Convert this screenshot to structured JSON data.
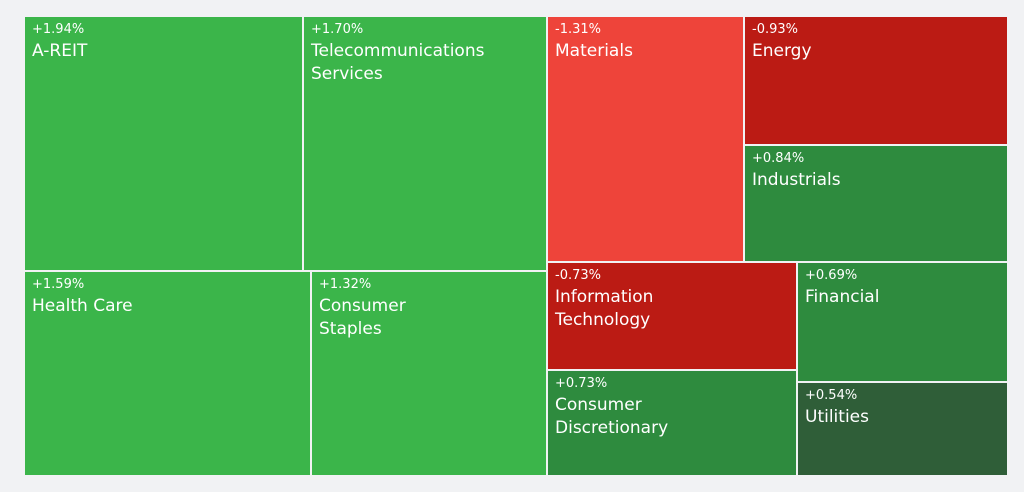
{
  "chart_data": {
    "type": "treemap",
    "unit": "%",
    "colors": {
      "strong_up": "#3bb54a",
      "up": "#2e8b3e",
      "weak_up": "#2f5e38",
      "strong_down": "#ee443a",
      "down": "#bb1b14",
      "border": "#ffffff",
      "background": "#f1f2f4"
    },
    "tiles": [
      {
        "label": "A-REIT",
        "change": "+1.94%",
        "value": 1.94,
        "color": "strong_up"
      },
      {
        "label": "Telecommunications\nServices",
        "change": "+1.70%",
        "value": 1.7,
        "color": "strong_up"
      },
      {
        "label": "Health Care",
        "change": "+1.59%",
        "value": 1.59,
        "color": "strong_up"
      },
      {
        "label": "Consumer\nStaples",
        "change": "+1.32%",
        "value": 1.32,
        "color": "strong_up"
      },
      {
        "label": "Materials",
        "change": "-1.31%",
        "value": -1.31,
        "color": "strong_down"
      },
      {
        "label": "Energy",
        "change": "-0.93%",
        "value": -0.93,
        "color": "down"
      },
      {
        "label": "Industrials",
        "change": "+0.84%",
        "value": 0.84,
        "color": "up"
      },
      {
        "label": "Information\nTechnology",
        "change": "-0.73%",
        "value": -0.73,
        "color": "down"
      },
      {
        "label": "Financial",
        "change": "+0.69%",
        "value": 0.69,
        "color": "up"
      },
      {
        "label": "Consumer\nDiscretionary",
        "change": "+0.73%",
        "value": 0.73,
        "color": "up"
      },
      {
        "label": "Utilities",
        "change": "+0.54%",
        "value": 0.54,
        "color": "weak_up"
      }
    ]
  }
}
